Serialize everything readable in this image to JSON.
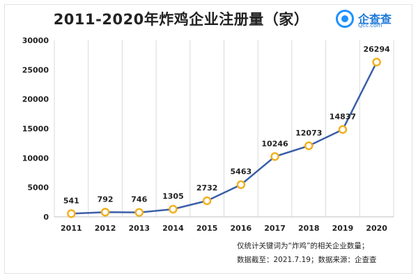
{
  "chart_data": {
    "type": "line",
    "title": "2011-2020年炸鸡企业注册量（家）",
    "xlabel": "",
    "ylabel": "",
    "categories": [
      "2011",
      "2012",
      "2013",
      "2014",
      "2015",
      "2016",
      "2017",
      "2018",
      "2019",
      "2020"
    ],
    "series": [
      {
        "values": [
          541,
          792,
          746,
          1305,
          2732,
          5463,
          10246,
          12073,
          14837,
          26294
        ]
      }
    ],
    "ylim": [
      0,
      30000
    ],
    "yticks": [
      "0",
      "5000",
      "10000",
      "15000",
      "20000",
      "25000",
      "30000"
    ],
    "grid": "vertical",
    "line_color": "#3a5ea8",
    "marker_color": "#f2b01e"
  },
  "logo": {
    "name": "企查查",
    "url": "Qcc.com"
  },
  "notes": {
    "line1": "仅统计关键词为“炸鸡”的相关企业数量；",
    "line2": "数据截至：2021.7.19；数据来源：企查查"
  }
}
